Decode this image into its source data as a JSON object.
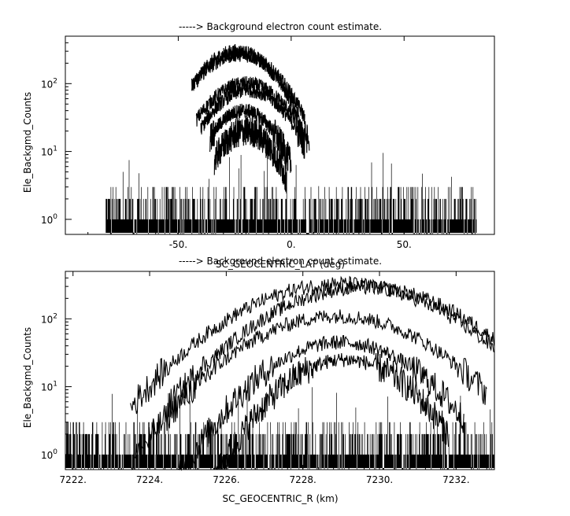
{
  "chart_data": [
    {
      "type": "scatter",
      "title": "-----> Background electron count estimate.",
      "xlabel": "SC_GEOCENTRIC_LAT (deg)",
      "ylabel": "Ele_Backgmd_Counts",
      "xlim": [
        -100,
        90
      ],
      "ylim": [
        0.6,
        500
      ],
      "yscale": "log",
      "x_ticks": [
        -50,
        0,
        50
      ],
      "x_tick_labels": [
        "-50.",
        "0.",
        "50."
      ],
      "y_ticks": [
        1,
        10,
        100
      ],
      "noise_floor": {
        "x_range": [
          -82,
          82
        ],
        "values": [
          0,
          1,
          2,
          3
        ],
        "occasional_max": 10
      },
      "series": [
        {
          "peak_x": -24,
          "peak_y": 300,
          "width": 13,
          "x_range": [
            -44,
            5
          ]
        },
        {
          "peak_x": -23,
          "peak_y": 270,
          "width": 14,
          "x_range": [
            -44,
            6
          ]
        },
        {
          "peak_x": -20,
          "peak_y": 100,
          "width": 14,
          "x_range": [
            -42,
            8
          ]
        },
        {
          "peak_x": -19,
          "peak_y": 80,
          "width": 13,
          "x_range": [
            -40,
            6
          ]
        },
        {
          "peak_x": -21,
          "peak_y": 40,
          "width": 11,
          "x_range": [
            -36,
            0
          ]
        },
        {
          "peak_x": -20,
          "peak_y": 20,
          "width": 10,
          "x_range": [
            -34,
            -2
          ]
        }
      ],
      "grid": false,
      "line_color": "#000000"
    },
    {
      "type": "scatter",
      "title": "-----> Background electron count estimate.",
      "xlabel": "SC_GEOCENTRIC_R (km)",
      "ylabel": "Ele_Backgmd_Counts",
      "xlim": [
        7221.8,
        7233
      ],
      "ylim": [
        0.6,
        500
      ],
      "yscale": "log",
      "x_ticks": [
        7222,
        7224,
        7226,
        7228,
        7230,
        7232
      ],
      "x_tick_labels": [
        "7222.",
        "7224.",
        "7226.",
        "7228.",
        "7230.",
        "7232."
      ],
      "y_ticks": [
        1,
        10,
        100
      ],
      "noise_floor": {
        "x_range": [
          7221.8,
          7233
        ],
        "values": [
          0,
          1,
          2,
          3
        ],
        "occasional_max": 10
      },
      "series": [
        {
          "peak_x": 7229.0,
          "peak_y": 330,
          "width": 1.9,
          "x_range": [
            7223.5,
            7233
          ]
        },
        {
          "peak_x": 7229.6,
          "peak_y": 290,
          "width": 1.8,
          "x_range": [
            7224.5,
            7233
          ]
        },
        {
          "peak_x": 7228.9,
          "peak_y": 110,
          "width": 1.7,
          "x_range": [
            7223.5,
            7232.8
          ]
        },
        {
          "peak_x": 7229.0,
          "peak_y": 45,
          "width": 1.4,
          "x_range": [
            7224.5,
            7232.2
          ]
        },
        {
          "peak_x": 7229.1,
          "peak_y": 25,
          "width": 1.2,
          "x_range": [
            7225.5,
            7231.8
          ]
        }
      ],
      "grid": false,
      "line_color": "#000000"
    }
  ]
}
